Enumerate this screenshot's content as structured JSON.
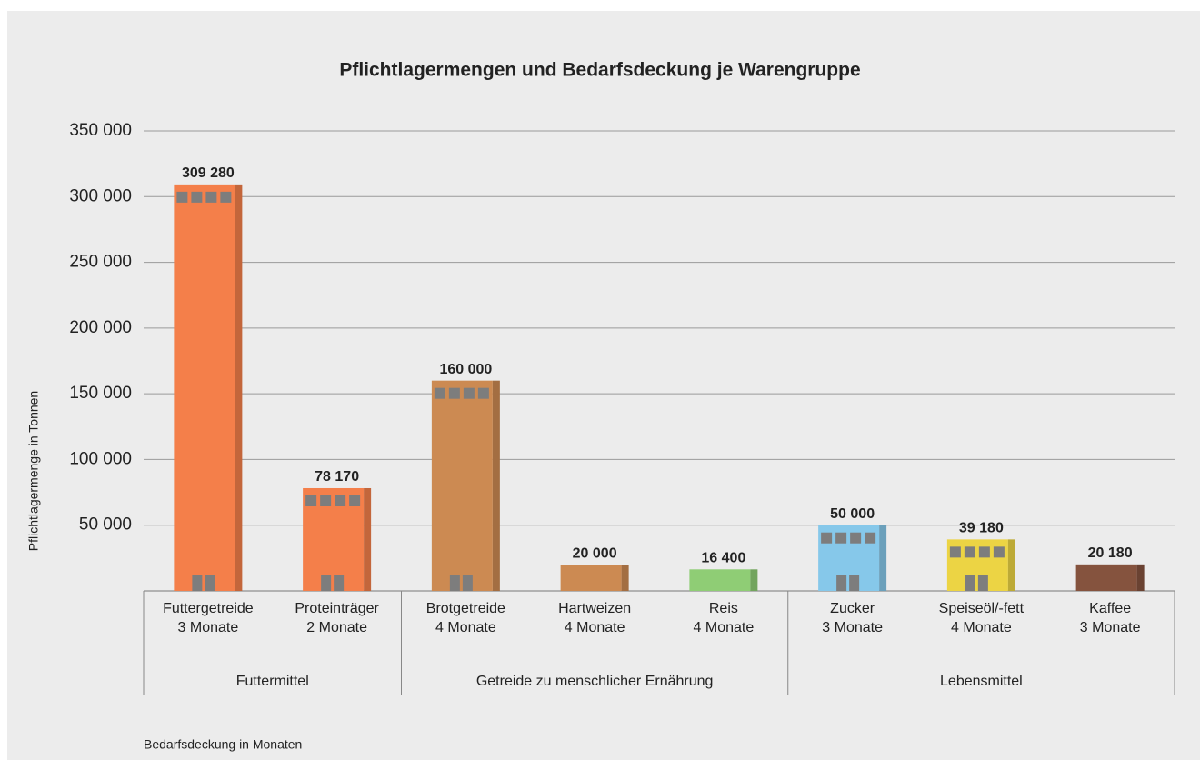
{
  "chart_data": {
    "type": "bar",
    "title": "Pflichtlagermengen und Bedarfsdeckung je Warengruppe",
    "y_label": "Pflichtlagermenge in Tonnen",
    "x_label": "Bedarfsdeckung in Monaten",
    "ylim": [
      0,
      350000
    ],
    "yticks": [
      {
        "value": 50000,
        "label": "50 000"
      },
      {
        "value": 100000,
        "label": "100 000"
      },
      {
        "value": 150000,
        "label": "150 000"
      },
      {
        "value": 200000,
        "label": "200 000"
      },
      {
        "value": 250000,
        "label": "250 000"
      },
      {
        "value": 300000,
        "label": "300 000"
      },
      {
        "value": 350000,
        "label": "350 000"
      }
    ],
    "grid": true,
    "groups": [
      {
        "name": "Futtermittel",
        "bars": [
          {
            "category": "Futtergetreide",
            "months": "3 Monate",
            "value": 309280,
            "value_label": "309 280",
            "color": "#f47f4a"
          },
          {
            "category": "Proteinträger",
            "months": "2 Monate",
            "value": 78170,
            "value_label": "78 170",
            "color": "#f47f4a"
          }
        ]
      },
      {
        "name": "Getreide zu menschlicher Ernährung",
        "bars": [
          {
            "category": "Brotgetreide",
            "months": "4 Monate",
            "value": 160000,
            "value_label": "160 000",
            "color": "#cc8a52"
          },
          {
            "category": "Hartweizen",
            "months": "4 Monate",
            "value": 20000,
            "value_label": "20 000",
            "color": "#cc8a52"
          },
          {
            "category": "Reis",
            "months": "4 Monate",
            "value": 16400,
            "value_label": "16 400",
            "color": "#8fcd75"
          }
        ]
      },
      {
        "name": "Lebensmittel",
        "bars": [
          {
            "category": "Zucker",
            "months": "3 Monate",
            "value": 50000,
            "value_label": "50 000",
            "color": "#86c8ea"
          },
          {
            "category": "Speiseöl/-fett",
            "months": "4 Monate",
            "value": 39180,
            "value_label": "39 180",
            "color": "#ecd444"
          },
          {
            "category": "Kaffee",
            "months": "3 Monate",
            "value": 20180,
            "value_label": "20 180",
            "color": "#85533e"
          }
        ]
      }
    ]
  }
}
